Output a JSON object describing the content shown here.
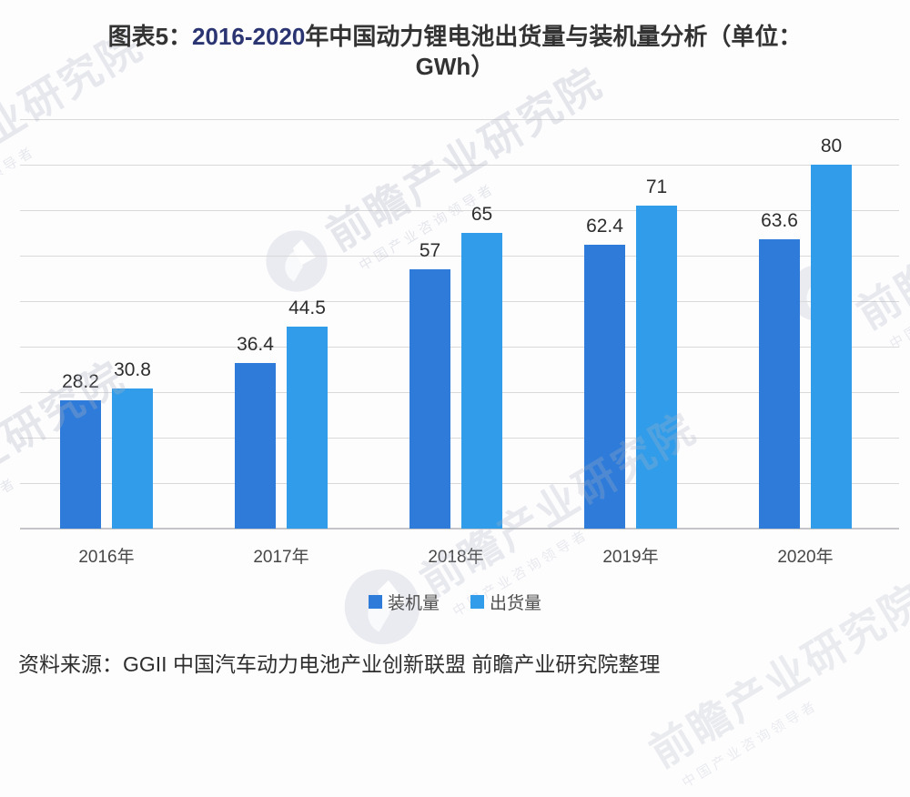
{
  "title": {
    "prefix": "图表5：",
    "range": "2016-2020",
    "suffix": "年中国动力锂电池出货量与装机量分析（单位：",
    "line2": "GWh）"
  },
  "chart_data": {
    "type": "bar",
    "title": "图表5：2016-2020年中国动力锂电池出货量与装机量分析（单位：GWh）",
    "categories": [
      "2016年",
      "2017年",
      "2018年",
      "2019年",
      "2020年"
    ],
    "series": [
      {
        "key": "installed-capacity",
        "name": "装机量",
        "color": "#2e7bd9",
        "values": [
          28.2,
          36.4,
          57,
          62.4,
          63.6
        ]
      },
      {
        "key": "shipments",
        "name": "出货量",
        "color": "#319ce9",
        "values": [
          30.8,
          44.5,
          65,
          71,
          80
        ]
      }
    ],
    "ylim": [
      0,
      90
    ],
    "grid_step": 10,
    "grid": true,
    "y_axis_labels_visible": false,
    "value_labels": true,
    "legend_position": "bottom"
  },
  "source": {
    "text": "资料来源：GGII 中国汽车动力电池产业创新联盟 前瞻产业研究院整理"
  },
  "watermark": {
    "text": "前瞻产业研究院",
    "subtext": "中国产业咨询领导者"
  },
  "colors": {
    "installed_bar": "#2e7bd9",
    "shipments_bar": "#319ce9",
    "gridline": "#d9d9d9",
    "axis": "#c3c5c8",
    "title_text": "#333333",
    "title_range": "#2a3572",
    "background": "#fdfdfe"
  }
}
